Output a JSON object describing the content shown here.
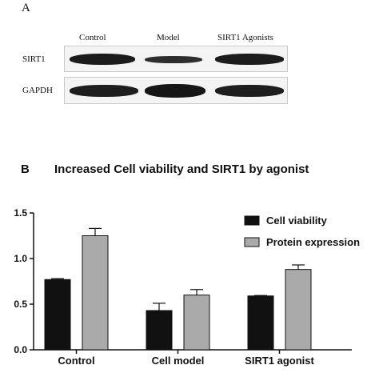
{
  "western_blot": {
    "panel_label": "A",
    "lanes": [
      "Control",
      "Model",
      "SIRT1 Agonists"
    ],
    "rows": [
      "SIRT1",
      "GAPDH"
    ]
  },
  "chart_panel_label": "B",
  "chart_data": {
    "type": "bar",
    "title": "Increased Cell viability  and SIRT1 by agonist",
    "categories": [
      "Control",
      "Cell model",
      "SIRT1 agonist"
    ],
    "series": [
      {
        "name": "Cell viability",
        "color": "#111111",
        "values": [
          0.77,
          0.43,
          0.59
        ],
        "errors": [
          0.01,
          0.08,
          0.005
        ]
      },
      {
        "name": "Protein expression",
        "color": "#aaaaaa",
        "values": [
          1.25,
          0.6,
          0.88
        ],
        "errors": [
          0.08,
          0.06,
          0.05
        ]
      }
    ],
    "ylim": [
      0,
      1.5
    ],
    "yticks": [
      "0.0",
      "0.5",
      "1.0",
      "1.5"
    ],
    "legend_position": "top-right"
  }
}
